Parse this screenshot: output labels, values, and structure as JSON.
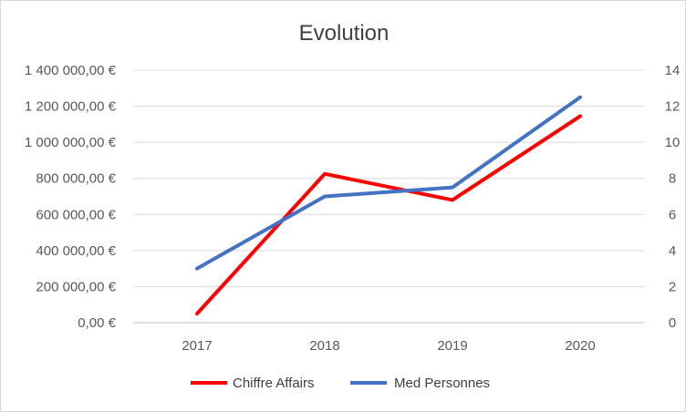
{
  "chart_data": {
    "type": "line",
    "title": "Evolution",
    "categories": [
      "2017",
      "2018",
      "2019",
      "2020"
    ],
    "y_left": {
      "ylim": [
        0,
        1400000
      ],
      "ticks": [
        0,
        200000,
        400000,
        600000,
        800000,
        1000000,
        1200000,
        1400000
      ],
      "tick_labels": [
        "0,00 €",
        "200 000,00 €",
        "400 000,00 €",
        "600 000,00 €",
        "800 000,00 €",
        "1 000 000,00 €",
        "1 200 000,00 €",
        "1 400 000,00 €"
      ]
    },
    "y_right": {
      "ylim": [
        0,
        14
      ],
      "ticks": [
        0,
        2,
        4,
        6,
        8,
        10,
        12,
        14
      ],
      "tick_labels": [
        "0",
        "2",
        "4",
        "6",
        "8",
        "10",
        "12",
        "14"
      ]
    },
    "series": [
      {
        "name": "Chiffre Affairs",
        "axis": "left",
        "color": "#ff0000",
        "values": [
          50000,
          825000,
          680000,
          1145000
        ]
      },
      {
        "name": "Med Personnes",
        "axis": "right",
        "color": "#4472c4",
        "values": [
          3,
          7,
          7.5,
          12.5
        ]
      }
    ],
    "grid": true,
    "legend": "bottom"
  }
}
